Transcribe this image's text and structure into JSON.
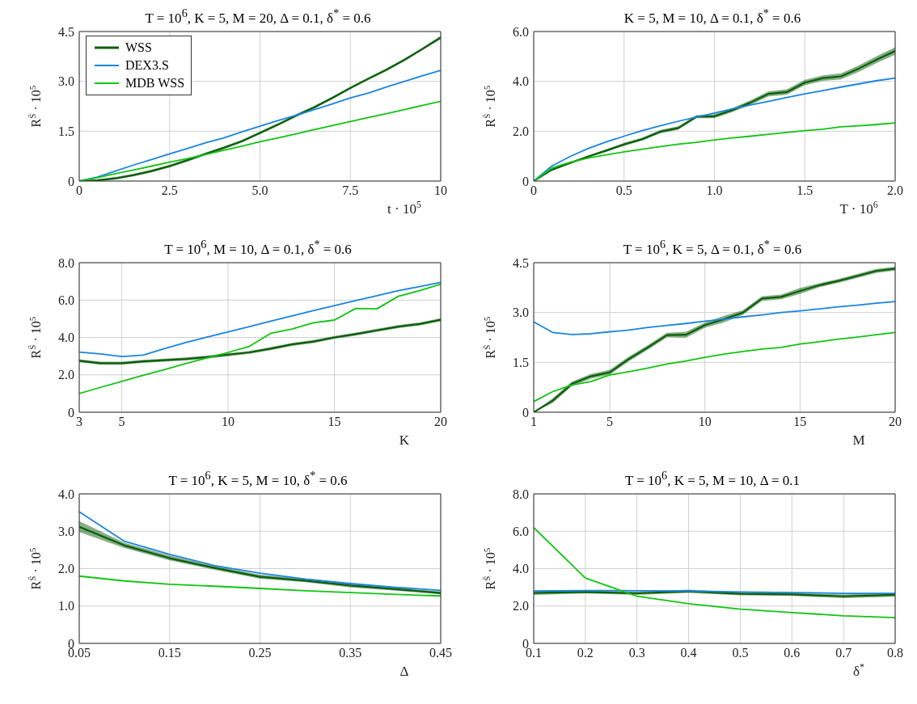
{
  "chart_data": [
    {
      "type": "line",
      "title": "T = 10$^{6}$, K = 5, M = 20, Δ = 0.1, δ$^{*}$ = 0.6",
      "xlabel": "t · 10$^{5}$",
      "ylabel": "R$^{S̄}$ · 10$^{5}$",
      "grid": true,
      "legend": "top left",
      "xlim": [
        0,
        10
      ],
      "xticks": [
        0,
        2.5,
        {
          "value": 5,
          "label": "5.0"
        },
        7.5,
        10
      ],
      "ylim": [
        0,
        4.5
      ],
      "yticks": [
        0,
        1.5,
        {
          "value": 3,
          "label": "3.0"
        },
        4.5
      ],
      "x": [
        0,
        0.5,
        1,
        1.5,
        2,
        2.5,
        3,
        3.5,
        4,
        4.5,
        5,
        5.5,
        6,
        6.5,
        7,
        7.5,
        8,
        8.5,
        9,
        9.5,
        10
      ],
      "series": [
        {
          "name": "WSS",
          "color": "#0b5e0b",
          "values": [
            0,
            0.02,
            0.08,
            0.18,
            0.3,
            0.45,
            0.63,
            0.82,
            1.0,
            1.2,
            1.45,
            1.7,
            1.97,
            2.22,
            2.5,
            2.8,
            3.08,
            3.35,
            3.65,
            3.98,
            4.32
          ],
          "lower": [
            0,
            0,
            0.04,
            0.14,
            0.26,
            0.41,
            0.59,
            0.78,
            0.96,
            1.16,
            1.41,
            1.66,
            1.93,
            2.18,
            2.46,
            2.76,
            3.04,
            3.31,
            3.61,
            3.94,
            4.27
          ],
          "upper": [
            0,
            0.05,
            0.12,
            0.22,
            0.34,
            0.49,
            0.67,
            0.86,
            1.04,
            1.24,
            1.49,
            1.74,
            2.01,
            2.26,
            2.54,
            2.84,
            3.12,
            3.39,
            3.69,
            4.02,
            4.37
          ]
        },
        {
          "name": "DEX3.S",
          "color": "#1a84e0",
          "values": [
            0,
            0.12,
            0.3,
            0.48,
            0.65,
            0.82,
            0.98,
            1.15,
            1.3,
            1.48,
            1.65,
            1.82,
            1.98,
            2.15,
            2.32,
            2.5,
            2.65,
            2.83,
            3.0,
            3.17,
            3.33
          ]
        },
        {
          "name": "MDB WSS",
          "color": "#11c411",
          "values": [
            0,
            0.1,
            0.22,
            0.33,
            0.45,
            0.57,
            0.68,
            0.8,
            0.93,
            1.05,
            1.18,
            1.3,
            1.42,
            1.55,
            1.67,
            1.79,
            1.91,
            2.03,
            2.15,
            2.28,
            2.4
          ]
        }
      ]
    },
    {
      "type": "line",
      "title": "K = 5, M = 10, Δ = 0.1, δ$^{*}$ = 0.6",
      "xlabel": "T · 10$^{6}$",
      "ylabel": "R$^{S̄}$ · 10$^{5}$",
      "grid": true,
      "xlim": [
        0,
        2
      ],
      "xticks": [
        0,
        0.5,
        {
          "value": 1,
          "label": "1.0"
        },
        1.5,
        {
          "value": 2,
          "label": "2.0"
        }
      ],
      "ylim": [
        0,
        6
      ],
      "yticks": [
        0,
        {
          "value": 2,
          "label": "2.0"
        },
        {
          "value": 4,
          "label": "4.0"
        },
        {
          "value": 6,
          "label": "6.0"
        }
      ],
      "x": [
        0,
        0.1,
        0.2,
        0.3,
        0.4,
        0.5,
        0.6,
        0.7,
        0.8,
        0.9,
        1.0,
        1.1,
        1.2,
        1.3,
        1.4,
        1.5,
        1.6,
        1.7,
        1.8,
        1.9,
        2.0
      ],
      "series": [
        {
          "color": "#0b5e0b",
          "values": [
            0,
            0.45,
            0.72,
            0.98,
            1.22,
            1.47,
            1.68,
            1.98,
            2.13,
            2.58,
            2.6,
            2.85,
            3.15,
            3.5,
            3.57,
            3.95,
            4.13,
            4.2,
            4.52,
            4.88,
            5.22
          ],
          "lower": [
            0,
            0.42,
            0.68,
            0.94,
            1.17,
            1.41,
            1.62,
            1.91,
            2.06,
            2.52,
            2.52,
            2.77,
            3.06,
            3.4,
            3.46,
            3.84,
            4.02,
            4.08,
            4.39,
            4.74,
            5.07
          ],
          "upper": [
            0,
            0.48,
            0.76,
            1.02,
            1.27,
            1.53,
            1.74,
            2.05,
            2.2,
            2.64,
            2.68,
            2.93,
            3.24,
            3.6,
            3.68,
            4.06,
            4.24,
            4.32,
            4.65,
            5.02,
            5.37
          ]
        },
        {
          "color": "#1a84e0",
          "values": [
            0,
            0.6,
            0.98,
            1.3,
            1.57,
            1.8,
            2.02,
            2.22,
            2.4,
            2.57,
            2.73,
            2.9,
            3.05,
            3.2,
            3.35,
            3.5,
            3.63,
            3.77,
            3.9,
            4.03,
            4.13
          ]
        },
        {
          "color": "#11c411",
          "values": [
            0,
            0.52,
            0.75,
            0.92,
            1.05,
            1.17,
            1.28,
            1.38,
            1.48,
            1.55,
            1.65,
            1.73,
            1.8,
            1.88,
            1.95,
            2.02,
            2.08,
            2.18,
            2.22,
            2.27,
            2.33
          ]
        }
      ]
    },
    {
      "type": "line",
      "title": "T = 10$^{6}$, M = 10, Δ = 0.1, δ$^{*}$ = 0.6",
      "xlabel": "K",
      "ylabel": "R$^{S̄}$ · 10$^{5}$",
      "grid": true,
      "xlim": [
        3,
        20
      ],
      "xticks": [
        3,
        5,
        10,
        15,
        20
      ],
      "ylim": [
        0,
        8
      ],
      "yticks": [
        0,
        {
          "value": 2,
          "label": "2.0"
        },
        {
          "value": 4,
          "label": "4.0"
        },
        {
          "value": 6,
          "label": "6.0"
        },
        {
          "value": 8,
          "label": "8.0"
        }
      ],
      "x": [
        3,
        4,
        5,
        6,
        7,
        8,
        9,
        10,
        11,
        12,
        13,
        14,
        15,
        16,
        17,
        18,
        19,
        20
      ],
      "series": [
        {
          "color": "#0b5e0b",
          "values": [
            2.75,
            2.62,
            2.62,
            2.72,
            2.78,
            2.85,
            2.95,
            3.08,
            3.2,
            3.4,
            3.63,
            3.78,
            4.0,
            4.18,
            4.38,
            4.58,
            4.72,
            4.95
          ],
          "lower": [
            2.67,
            2.54,
            2.54,
            2.64,
            2.7,
            2.77,
            2.87,
            3.0,
            3.12,
            3.32,
            3.55,
            3.7,
            3.92,
            4.1,
            4.3,
            4.5,
            4.64,
            4.87
          ],
          "upper": [
            2.83,
            2.7,
            2.7,
            2.8,
            2.86,
            2.93,
            3.03,
            3.16,
            3.28,
            3.48,
            3.71,
            3.86,
            4.08,
            4.26,
            4.46,
            4.66,
            4.8,
            5.03
          ]
        },
        {
          "color": "#1a84e0",
          "values": [
            3.22,
            3.12,
            2.98,
            3.05,
            3.4,
            3.72,
            4.02,
            4.3,
            4.58,
            4.87,
            5.15,
            5.43,
            5.7,
            5.97,
            6.23,
            6.5,
            6.72,
            6.95
          ]
        },
        {
          "color": "#11c411",
          "values": [
            1.0,
            1.33,
            1.65,
            1.97,
            2.28,
            2.6,
            2.9,
            3.2,
            3.52,
            4.22,
            4.45,
            4.78,
            4.93,
            5.55,
            5.53,
            6.2,
            6.5,
            6.85
          ]
        }
      ]
    },
    {
      "type": "line",
      "title": "T = 10$^{6}$, K = 5, Δ = 0.1, δ$^{*}$ = 0.6",
      "xlabel": "M",
      "ylabel": "R$^{S̄}$ · 10$^{5}$",
      "grid": true,
      "xlim": [
        1,
        20
      ],
      "xticks": [
        1,
        5,
        10,
        15,
        20
      ],
      "ylim": [
        0,
        4.5
      ],
      "yticks": [
        0,
        1.5,
        {
          "value": 3,
          "label": "3.0"
        },
        4.5
      ],
      "x": [
        1,
        2,
        3,
        4,
        5,
        6,
        7,
        8,
        9,
        10,
        11,
        12,
        13,
        14,
        15,
        16,
        17,
        18,
        19,
        20
      ],
      "series": [
        {
          "color": "#0b5e0b",
          "values": [
            0,
            0.35,
            0.85,
            1.08,
            1.2,
            1.6,
            1.95,
            2.32,
            2.33,
            2.62,
            2.8,
            3.0,
            3.42,
            3.47,
            3.65,
            3.82,
            3.95,
            4.1,
            4.25,
            4.32
          ],
          "lower": [
            0,
            0.28,
            0.78,
            1.01,
            1.13,
            1.53,
            1.88,
            2.25,
            2.24,
            2.54,
            2.7,
            2.93,
            3.35,
            3.4,
            3.56,
            3.76,
            3.89,
            4.04,
            4.19,
            4.26
          ],
          "upper": [
            0,
            0.42,
            0.92,
            1.15,
            1.28,
            1.67,
            2.02,
            2.39,
            2.42,
            2.7,
            2.9,
            3.07,
            3.49,
            3.54,
            3.74,
            3.88,
            4.01,
            4.16,
            4.31,
            4.38
          ]
        },
        {
          "color": "#1a84e0",
          "values": [
            2.72,
            2.4,
            2.34,
            2.36,
            2.42,
            2.47,
            2.55,
            2.61,
            2.67,
            2.74,
            2.8,
            2.87,
            2.93,
            3.0,
            3.05,
            3.11,
            3.17,
            3.22,
            3.28,
            3.33
          ]
        },
        {
          "color": "#11c411",
          "values": [
            0.32,
            0.62,
            0.82,
            0.92,
            1.12,
            1.22,
            1.33,
            1.45,
            1.54,
            1.65,
            1.75,
            1.83,
            1.9,
            1.95,
            2.05,
            2.12,
            2.2,
            2.26,
            2.33,
            2.4
          ]
        }
      ]
    },
    {
      "type": "line",
      "title": "T = 10$^{6}$, K = 5, M = 10, δ$^{*}$ = 0.6",
      "xlabel": "Δ",
      "ylabel": "R$^{S̄}$ · 10$^{5}$",
      "grid": true,
      "xlim": [
        0.05,
        0.45
      ],
      "xticks": [
        0.05,
        0.15,
        0.25,
        0.35,
        0.45
      ],
      "ylim": [
        0,
        4
      ],
      "yticks": [
        0,
        {
          "value": 1,
          "label": "1.0"
        },
        {
          "value": 2,
          "label": "2.0"
        },
        {
          "value": 3,
          "label": "3.0"
        },
        {
          "value": 4,
          "label": "4.0"
        }
      ],
      "x": [
        0.05,
        0.1,
        0.15,
        0.2,
        0.25,
        0.3,
        0.35,
        0.4,
        0.45
      ],
      "series": [
        {
          "color": "#0b5e0b",
          "values": [
            3.12,
            2.62,
            2.28,
            2.02,
            1.78,
            1.68,
            1.55,
            1.45,
            1.35
          ],
          "lower": [
            2.98,
            2.55,
            2.22,
            1.97,
            1.73,
            1.64,
            1.5,
            1.41,
            1.31
          ],
          "upper": [
            3.27,
            2.69,
            2.35,
            2.07,
            1.84,
            1.73,
            1.6,
            1.49,
            1.39
          ]
        },
        {
          "color": "#1a84e0",
          "values": [
            3.52,
            2.73,
            2.38,
            2.08,
            1.88,
            1.72,
            1.6,
            1.5,
            1.42
          ]
        },
        {
          "color": "#11c411",
          "values": [
            1.8,
            1.67,
            1.58,
            1.53,
            1.47,
            1.41,
            1.36,
            1.31,
            1.27
          ]
        }
      ]
    },
    {
      "type": "line",
      "title": "T = 10$^{6}$, K = 5, M = 10, Δ = 0.1",
      "xlabel": "δ$^{*}$",
      "ylabel": "R$^{S̄}$ · 10$^{5}$",
      "grid": true,
      "xlim": [
        0.1,
        0.8
      ],
      "xticks": [
        0.1,
        0.2,
        0.3,
        0.4,
        0.5,
        0.6,
        0.7,
        0.8
      ],
      "ylim": [
        0,
        8
      ],
      "yticks": [
        0,
        {
          "value": 2,
          "label": "2.0"
        },
        {
          "value": 4,
          "label": "4.0"
        },
        {
          "value": 6,
          "label": "6.0"
        },
        {
          "value": 8,
          "label": "8.0"
        }
      ],
      "x": [
        0.1,
        0.2,
        0.3,
        0.4,
        0.5,
        0.6,
        0.7,
        0.8
      ],
      "series": [
        {
          "color": "#0b5e0b",
          "values": [
            2.7,
            2.75,
            2.68,
            2.78,
            2.65,
            2.62,
            2.52,
            2.6
          ],
          "lower": [
            2.6,
            2.67,
            2.6,
            2.7,
            2.57,
            2.54,
            2.42,
            2.5
          ],
          "upper": [
            2.8,
            2.83,
            2.76,
            2.88,
            2.73,
            2.7,
            2.62,
            2.7
          ]
        },
        {
          "color": "#1a84e0",
          "values": [
            2.8,
            2.83,
            2.82,
            2.8,
            2.75,
            2.72,
            2.68,
            2.68
          ]
        },
        {
          "color": "#11c411",
          "values": [
            6.2,
            3.5,
            2.52,
            2.12,
            1.83,
            1.65,
            1.48,
            1.38
          ]
        }
      ]
    }
  ]
}
